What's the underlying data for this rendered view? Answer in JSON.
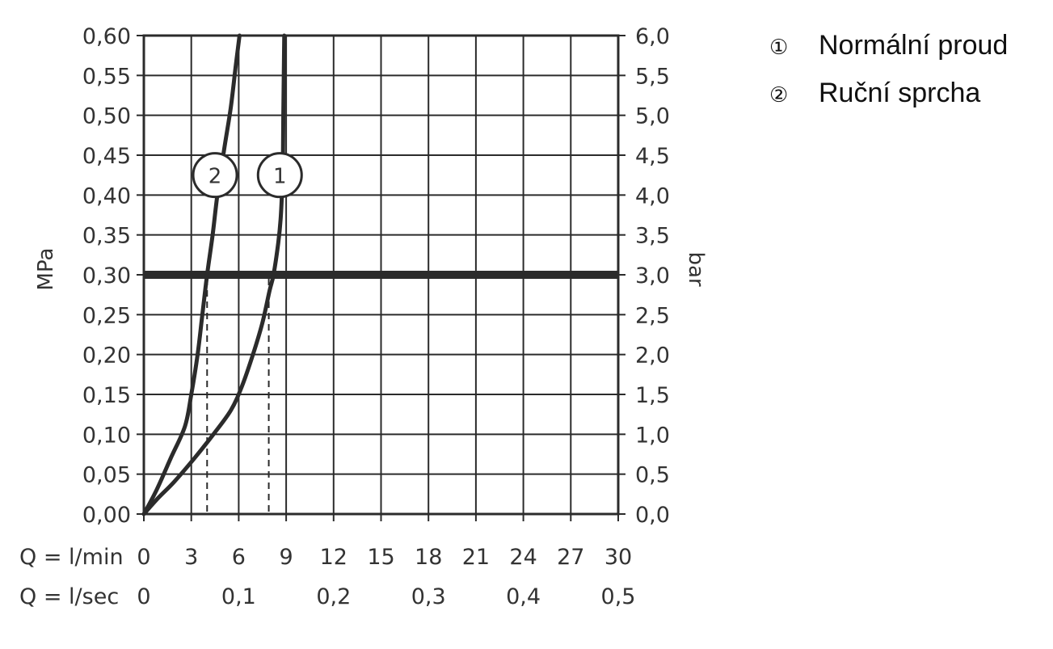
{
  "chart_data": {
    "type": "line",
    "left_axis": {
      "label": "MPa",
      "ylim": [
        0,
        0.6
      ],
      "ticks": [
        "0,00",
        "0,05",
        "0,10",
        "0,15",
        "0,20",
        "0,25",
        "0,30",
        "0,35",
        "0,40",
        "0,45",
        "0,50",
        "0,55",
        "0,60"
      ]
    },
    "right_axis": {
      "label": "bar",
      "ticks": [
        "0,0",
        "0,5",
        "1,0",
        "1,5",
        "2,0",
        "2,5",
        "3,0",
        "3,5",
        "4,0",
        "4,5",
        "5,0",
        "5,5",
        "6,0"
      ]
    },
    "x_axis": {
      "xlim": [
        0,
        30
      ],
      "row1_label": "Q = l/min",
      "row1_ticks": [
        "0",
        "3",
        "6",
        "9",
        "12",
        "15",
        "18",
        "21",
        "24",
        "27",
        "30"
      ],
      "row2_label": "Q = l/sec",
      "row2_ticks": [
        {
          "value": 0,
          "text": "0"
        },
        {
          "value": 6,
          "text": "0,1"
        },
        {
          "value": 12,
          "text": "0,2"
        },
        {
          "value": 18,
          "text": "0,3"
        },
        {
          "value": 24,
          "text": "0,4"
        },
        {
          "value": 30,
          "text": "0,5"
        }
      ]
    },
    "grid": true,
    "reference_line": {
      "y": 0.3
    },
    "series": [
      {
        "name": "Normální proud",
        "marker": "1",
        "points": [
          [
            0,
            0
          ],
          [
            0.9,
            0.02
          ],
          [
            1.9,
            0.04
          ],
          [
            3.2,
            0.07
          ],
          [
            4.4,
            0.1
          ],
          [
            5.5,
            0.13
          ],
          [
            6.2,
            0.16
          ],
          [
            6.9,
            0.2
          ],
          [
            7.5,
            0.24
          ],
          [
            7.95,
            0.28
          ],
          [
            8.2,
            0.3
          ],
          [
            8.5,
            0.34
          ],
          [
            8.65,
            0.37
          ],
          [
            8.75,
            0.41
          ],
          [
            8.8,
            0.45
          ],
          [
            8.82,
            0.5
          ],
          [
            8.85,
            0.55
          ],
          [
            8.88,
            0.6
          ]
        ],
        "drop_x": 7.9,
        "marker_at": [
          8.6,
          0.425
        ]
      },
      {
        "name": "Ruční sprcha",
        "marker": "2",
        "points": [
          [
            0,
            0
          ],
          [
            0.8,
            0.03
          ],
          [
            1.7,
            0.07
          ],
          [
            2.6,
            0.11
          ],
          [
            3.0,
            0.15
          ],
          [
            3.4,
            0.2
          ],
          [
            3.7,
            0.25
          ],
          [
            4.0,
            0.3
          ],
          [
            4.35,
            0.35
          ],
          [
            4.65,
            0.4
          ],
          [
            5.1,
            0.46
          ],
          [
            5.5,
            0.51
          ],
          [
            5.8,
            0.56
          ],
          [
            6.05,
            0.6
          ]
        ],
        "drop_x": 4.0,
        "marker_at": [
          4.5,
          0.425
        ]
      }
    ],
    "legend": {
      "placement": "top-right",
      "items": [
        {
          "symbol": "①",
          "label": "Normální proud"
        },
        {
          "symbol": "②",
          "label": "Ruční sprcha"
        }
      ]
    }
  }
}
